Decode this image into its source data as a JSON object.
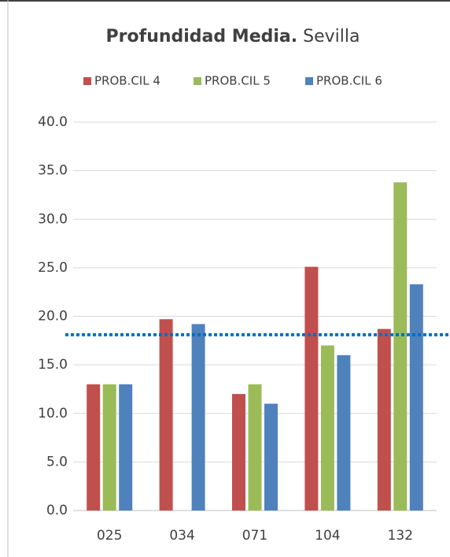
{
  "chart_data": {
    "type": "bar",
    "title": "Profundidad Media.",
    "subtitle": "Sevilla",
    "categories": [
      "025",
      "034",
      "071",
      "104",
      "132"
    ],
    "series": [
      {
        "name": "PROB.CIL 4",
        "color": "#c0504d",
        "values": [
          13,
          19.7,
          12,
          25.1,
          18.7
        ]
      },
      {
        "name": "PROB.CIL 5",
        "color": "#9bbb59",
        "values": [
          13,
          null,
          13,
          17,
          33.8
        ]
      },
      {
        "name": "PROB.CIL 6",
        "color": "#4f81bd",
        "values": [
          13,
          19.2,
          11,
          16,
          23.3
        ]
      }
    ],
    "ylim": [
      0,
      40
    ],
    "yticks": [
      {
        "value": 0,
        "label": "0.0"
      },
      {
        "value": 5,
        "label": "5.0"
      },
      {
        "value": 10,
        "label": "10.0"
      },
      {
        "value": 15,
        "label": "15.0"
      },
      {
        "value": 20,
        "label": "20.0"
      },
      {
        "value": 25,
        "label": "25.0"
      },
      {
        "value": 30,
        "label": "30.0"
      },
      {
        "value": 35,
        "label": "35.0"
      },
      {
        "value": 40,
        "label": "40.0"
      }
    ],
    "grid": true,
    "legend": "top",
    "reference_line": {
      "value": 18.1,
      "color": "#0070c0"
    }
  }
}
